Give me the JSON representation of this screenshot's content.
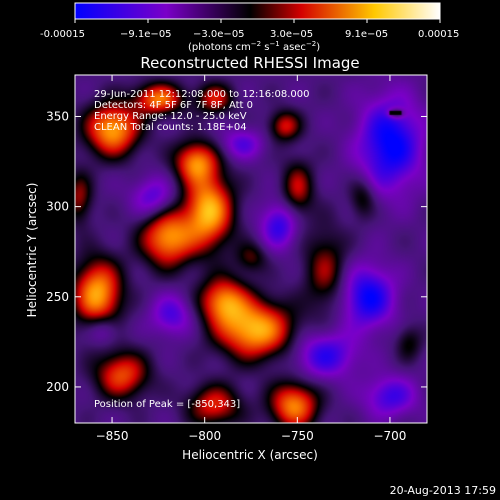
{
  "colorbar": {
    "tick_labels": [
      "-0.00015",
      "−9.1e−05",
      "−3.0e−05",
      "3.0e−05",
      "9.1e−05",
      "0.00015"
    ],
    "units_prefix": "(photons cm",
    "units_exp1": "−2",
    "units_mid1": " s",
    "units_exp2": "−1",
    "units_mid2": " asec",
    "units_exp3": "−2",
    "units_suffix": ")"
  },
  "chart_data": {
    "type": "heatmap",
    "title": "Reconstructed RHESSI Image",
    "xlabel": "Heliocentric X (arcsec)",
    "ylabel": "Heliocentric Y (arcsec)",
    "xlim": [
      -870,
      -680
    ],
    "ylim": [
      180,
      373
    ],
    "xticks": [
      -850,
      -800,
      -750,
      -700
    ],
    "yticks": [
      200,
      250,
      300,
      350
    ],
    "colorbar_range": [
      -0.00015,
      0.00015
    ],
    "colormap": "blue-black-red-yellow-white",
    "peak_position": [
      -850,
      343
    ],
    "annotations": [
      "29-Jun-2011 12:12:08.000 to 12:16:08.000",
      "Detectors: 4F 5F 6F 7F 8F, Att 0",
      "Energy Range: 12.0 - 25.0 keV",
      "CLEAN   Total counts: 1.18E+04",
      "Position of Peak = [-850,343]"
    ],
    "blobs": [
      {
        "x": -798,
        "y": 298,
        "sx": 9,
        "sy": 14,
        "v": 1.0
      },
      {
        "x": -820,
        "y": 283,
        "sx": 10,
        "sy": 11,
        "v": 0.9
      },
      {
        "x": -805,
        "y": 325,
        "sx": 8,
        "sy": 8,
        "v": 0.8
      },
      {
        "x": -773,
        "y": 232,
        "sx": 14,
        "sy": 11,
        "v": 1.0
      },
      {
        "x": -790,
        "y": 248,
        "sx": 9,
        "sy": 9,
        "v": 0.8
      },
      {
        "x": -858,
        "y": 252,
        "sx": 9,
        "sy": 13,
        "v": 0.95
      },
      {
        "x": -850,
        "y": 343,
        "sx": 10,
        "sy": 10,
        "v": 0.95
      },
      {
        "x": -825,
        "y": 360,
        "sx": 9,
        "sy": 6,
        "v": 0.8
      },
      {
        "x": -795,
        "y": 360,
        "sx": 7,
        "sy": 6,
        "v": 0.55
      },
      {
        "x": -757,
        "y": 345,
        "sx": 6,
        "sy": 6,
        "v": 0.55
      },
      {
        "x": -750,
        "y": 310,
        "sx": 6,
        "sy": 11,
        "v": 0.5
      },
      {
        "x": -735,
        "y": 265,
        "sx": 8,
        "sy": 16,
        "v": 0.45
      },
      {
        "x": -752,
        "y": 190,
        "sx": 9,
        "sy": 9,
        "v": 0.85
      },
      {
        "x": -795,
        "y": 190,
        "sx": 10,
        "sy": 8,
        "v": 0.6
      },
      {
        "x": -845,
        "y": 207,
        "sx": 10,
        "sy": 9,
        "v": 0.7
      },
      {
        "x": -868,
        "y": 305,
        "sx": 5,
        "sy": 10,
        "v": 0.45
      },
      {
        "x": -715,
        "y": 305,
        "sx": 5,
        "sy": 8,
        "v": 0.35
      },
      {
        "x": -690,
        "y": 225,
        "sx": 5,
        "sy": 7,
        "v": 0.3
      },
      {
        "x": -775,
        "y": 272,
        "sx": 6,
        "sy": 6,
        "v": 0.35
      },
      {
        "x": -700,
        "y": 335,
        "sx": 12,
        "sy": 18,
        "v": -0.75
      },
      {
        "x": -712,
        "y": 250,
        "sx": 10,
        "sy": 12,
        "v": -0.7
      },
      {
        "x": -735,
        "y": 218,
        "sx": 12,
        "sy": 9,
        "v": -0.55
      },
      {
        "x": -760,
        "y": 290,
        "sx": 7,
        "sy": 9,
        "v": -0.55
      },
      {
        "x": -828,
        "y": 305,
        "sx": 8,
        "sy": 8,
        "v": -0.45
      },
      {
        "x": -818,
        "y": 240,
        "sx": 8,
        "sy": 8,
        "v": -0.45
      },
      {
        "x": -780,
        "y": 335,
        "sx": 8,
        "sy": 6,
        "v": -0.4
      },
      {
        "x": -700,
        "y": 195,
        "sx": 10,
        "sy": 8,
        "v": -0.5
      },
      {
        "x": -855,
        "y": 232,
        "sx": 6,
        "sy": 6,
        "v": -0.35
      },
      {
        "x": -697,
        "y": 352,
        "sx": 3,
        "sy": 2,
        "v": 0.55
      }
    ]
  },
  "footer": {
    "timestamp": "20-Aug-2013 17:59"
  }
}
